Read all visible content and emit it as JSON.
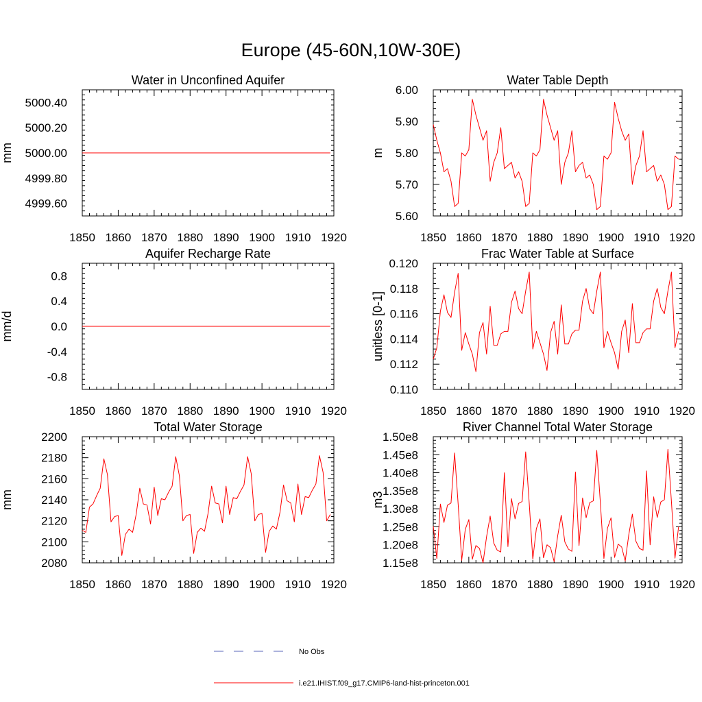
{
  "title": "Europe (45-60N,10W-30E)",
  "legend": [
    {
      "label": "No Obs",
      "color": "#5a66b8",
      "dash": true
    },
    {
      "label": "i.e21.IHIST.f09_g17.CMIP6-land-hist-princeton.001",
      "color": "#ff0000",
      "dash": false
    }
  ],
  "chart_data": [
    {
      "type": "line",
      "title": "Water in Unconfined Aquifer",
      "ylabel": "mm",
      "xlim": [
        1850,
        1920
      ],
      "ylim": [
        4999.5,
        5000.5
      ],
      "xticks": [
        1850,
        1860,
        1870,
        1880,
        1890,
        1900,
        1910,
        1920
      ],
      "yticks": [
        4999.6,
        4999.8,
        5000.0,
        5000.2,
        5000.4
      ],
      "ytick_labels": [
        "4999.60",
        "4999.80",
        "5000.00",
        "5000.20",
        "5000.40"
      ],
      "x_start": 1850,
      "x_end": 1919,
      "series": [
        {
          "color": "#ff0000",
          "values": [
            5000.0,
            5000.0
          ]
        }
      ]
    },
    {
      "type": "line",
      "title": "Water Table Depth",
      "ylabel": "m",
      "xlim": [
        1850,
        1920
      ],
      "ylim": [
        5.6,
        6.0
      ],
      "xticks": [
        1850,
        1860,
        1870,
        1880,
        1890,
        1900,
        1910,
        1920
      ],
      "yticks": [
        5.6,
        5.7,
        5.8,
        5.9,
        6.0
      ],
      "ytick_labels": [
        "5.60",
        "5.70",
        "5.80",
        "5.90",
        "6.00"
      ],
      "x_start": 1850,
      "x_end": 1919,
      "series": [
        {
          "color": "#ff0000",
          "values": [
            5.89,
            5.84,
            5.8,
            5.74,
            5.75,
            5.71,
            5.63,
            5.64,
            5.8,
            5.79,
            5.81,
            5.97,
            5.92,
            5.88,
            5.84,
            5.87,
            5.71,
            5.77,
            5.8,
            5.88,
            5.75,
            5.76,
            5.77,
            5.72,
            5.74,
            5.71,
            5.63,
            5.64,
            5.8,
            5.79,
            5.81,
            5.97,
            5.92,
            5.88,
            5.84,
            5.87,
            5.7,
            5.77,
            5.8,
            5.87,
            5.74,
            5.76,
            5.77,
            5.72,
            5.73,
            5.7,
            5.62,
            5.63,
            5.79,
            5.78,
            5.8,
            5.96,
            5.91,
            5.87,
            5.84,
            5.86,
            5.7,
            5.76,
            5.79,
            5.87,
            5.74,
            5.75,
            5.76,
            5.71,
            5.73,
            5.7,
            5.62,
            5.63,
            5.79,
            5.78
          ]
        }
      ]
    },
    {
      "type": "line",
      "title": "Aquifer Recharge Rate",
      "ylabel": "mm/d",
      "xlim": [
        1850,
        1920
      ],
      "ylim": [
        -1.0,
        1.0
      ],
      "xticks": [
        1850,
        1860,
        1870,
        1880,
        1890,
        1900,
        1910,
        1920
      ],
      "yticks": [
        -0.8,
        -0.4,
        0.0,
        0.4,
        0.8
      ],
      "ytick_labels": [
        "-0.8",
        "-0.4",
        "0.0",
        "0.4",
        "0.8"
      ],
      "x_start": 1850,
      "x_end": 1919,
      "series": [
        {
          "color": "#ff0000",
          "values": [
            0.0,
            0.0
          ]
        }
      ]
    },
    {
      "type": "line",
      "title": "Frac Water Table at Surface",
      "ylabel": "unitless [0-1]",
      "xlim": [
        1850,
        1920
      ],
      "ylim": [
        0.11,
        0.12
      ],
      "xticks": [
        1850,
        1860,
        1870,
        1880,
        1890,
        1900,
        1910,
        1920
      ],
      "yticks": [
        0.11,
        0.112,
        0.114,
        0.116,
        0.118,
        0.12
      ],
      "ytick_labels": [
        "0.110",
        "0.112",
        "0.114",
        "0.116",
        "0.118",
        "0.120"
      ],
      "x_start": 1850,
      "x_end": 1919,
      "series": [
        {
          "color": "#ff0000",
          "values": [
            0.1124,
            0.1133,
            0.1162,
            0.1175,
            0.1161,
            0.1157,
            0.1177,
            0.1192,
            0.1131,
            0.1145,
            0.1136,
            0.1128,
            0.1114,
            0.1145,
            0.1153,
            0.1128,
            0.1166,
            0.1135,
            0.1135,
            0.1144,
            0.1146,
            0.1146,
            0.1169,
            0.1178,
            0.1164,
            0.116,
            0.1178,
            0.1193,
            0.1132,
            0.1146,
            0.1137,
            0.1128,
            0.1115,
            0.1145,
            0.1154,
            0.1128,
            0.1167,
            0.1136,
            0.1136,
            0.1144,
            0.1147,
            0.1147,
            0.117,
            0.118,
            0.1164,
            0.116,
            0.1178,
            0.1193,
            0.1133,
            0.1146,
            0.1137,
            0.1129,
            0.1116,
            0.1146,
            0.1155,
            0.1129,
            0.1168,
            0.1137,
            0.1137,
            0.1145,
            0.1148,
            0.1148,
            0.117,
            0.118,
            0.1165,
            0.116,
            0.1178,
            0.1193,
            0.1133,
            0.1146
          ]
        }
      ]
    },
    {
      "type": "line",
      "title": "Total Water Storage",
      "ylabel": "mm",
      "xlim": [
        1850,
        1920
      ],
      "ylim": [
        2080,
        2200
      ],
      "xticks": [
        1850,
        1860,
        1870,
        1880,
        1890,
        1900,
        1910,
        1920
      ],
      "yticks": [
        2080,
        2100,
        2120,
        2140,
        2160,
        2180,
        2200
      ],
      "ytick_labels": [
        "2080",
        "2100",
        "2120",
        "2140",
        "2160",
        "2180",
        "2200"
      ],
      "x_start": 1850,
      "x_end": 1919,
      "series": [
        {
          "color": "#ff0000",
          "values": [
            2111,
            2109,
            2133,
            2136,
            2144,
            2151,
            2179,
            2164,
            2119,
            2124,
            2125,
            2087,
            2107,
            2112,
            2109,
            2126,
            2151,
            2136,
            2135,
            2117,
            2152,
            2125,
            2141,
            2140,
            2147,
            2153,
            2181,
            2163,
            2120,
            2125,
            2126,
            2089,
            2109,
            2113,
            2110,
            2127,
            2153,
            2137,
            2136,
            2118,
            2153,
            2126,
            2142,
            2141,
            2148,
            2154,
            2181,
            2165,
            2120,
            2126,
            2127,
            2090,
            2110,
            2115,
            2112,
            2128,
            2154,
            2139,
            2137,
            2119,
            2155,
            2126,
            2143,
            2142,
            2149,
            2155,
            2182,
            2166,
            2120,
            2126
          ]
        }
      ]
    },
    {
      "type": "line",
      "title": "River Channel Total Water Storage",
      "ylabel": "m3",
      "xlim": [
        1850,
        1920
      ],
      "ylim": [
        115000000.0,
        150000000.0
      ],
      "xticks": [
        1850,
        1860,
        1870,
        1880,
        1890,
        1900,
        1910,
        1920
      ],
      "yticks": [
        115000000.0,
        120000000.0,
        125000000.0,
        130000000.0,
        135000000.0,
        140000000.0,
        145000000.0,
        150000000.0
      ],
      "ytick_labels": [
        "1.15e8",
        "1.20e8",
        "1.25e8",
        "1.30e8",
        "1.35e8",
        "1.40e8",
        "1.45e8",
        "1.50e8"
      ],
      "x_start": 1850,
      "x_end": 1919,
      "series": [
        {
          "color": "#ff0000",
          "values": [
            125200000.0,
            116200000.0,
            131300000.0,
            126200000.0,
            131000000.0,
            131600000.0,
            145500000.0,
            131300000.0,
            115700000.0,
            124300000.0,
            127000000.0,
            116000000.0,
            119800000.0,
            119000000.0,
            115000000.0,
            122300000.0,
            128000000.0,
            120500000.0,
            118500000.0,
            118000000.0,
            140000000.0,
            119500000.0,
            132800000.0,
            127200000.0,
            131500000.0,
            132000000.0,
            145800000.0,
            131500000.0,
            116000000.0,
            124500000.0,
            127200000.0,
            116400000.0,
            120000000.0,
            119200000.0,
            115300000.0,
            122500000.0,
            128200000.0,
            120800000.0,
            118800000.0,
            118200000.0,
            140200000.0,
            119800000.0,
            133000000.0,
            127500000.0,
            131700000.0,
            132200000.0,
            146200000.0,
            131800000.0,
            116200000.0,
            124600000.0,
            127500000.0,
            116500000.0,
            120200000.0,
            119400000.0,
            115500000.0,
            122800000.0,
            128500000.0,
            121000000.0,
            119000000.0,
            118500000.0,
            140500000.0,
            120000000.0,
            133300000.0,
            127600000.0,
            131900000.0,
            132500000.0,
            146500000.0,
            132000000.0,
            116300000.0,
            125000000.0
          ]
        }
      ]
    }
  ]
}
